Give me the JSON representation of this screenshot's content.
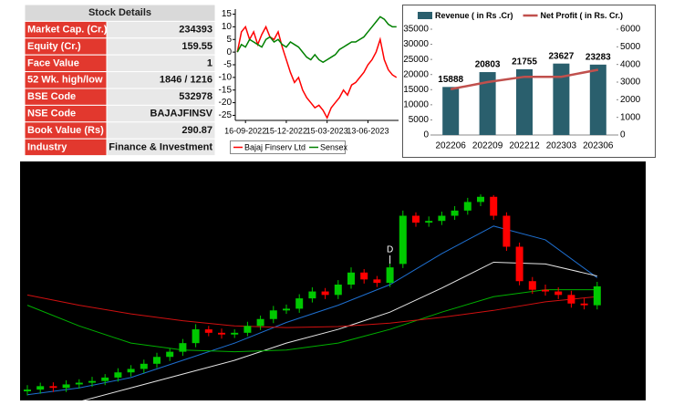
{
  "table": {
    "title": "Stock Details",
    "rows": [
      [
        "Market Cap. (Cr.)",
        "234393"
      ],
      [
        "Equity (Cr.)",
        "159.55"
      ],
      [
        "Face Value",
        "1"
      ],
      [
        "52 Wk. high/low",
        "1846 / 1216"
      ],
      [
        "BSE Code",
        "532978"
      ],
      [
        "NSE Code",
        "BAJAJFINSV"
      ],
      [
        "Book Value (Rs)",
        "290.87"
      ],
      [
        "Industry",
        "Finance & Investment"
      ]
    ]
  },
  "chart_data": [
    {
      "type": "line",
      "categories": [
        null,
        null,
        "16-09-2022",
        null,
        null,
        null,
        null,
        null,
        null,
        null,
        null,
        null,
        "15-12-2022",
        null,
        null,
        null,
        null,
        null,
        null,
        null,
        null,
        null,
        "15-03-2023",
        null,
        null,
        null,
        null,
        null,
        null,
        null,
        null,
        null,
        "13-06-2023",
        null,
        null,
        null,
        null,
        null,
        null,
        null
      ],
      "series": [
        {
          "name": "Bajaj Finserv Ltd",
          "color": "#ff0000",
          "values": [
            0,
            8,
            10,
            5,
            8,
            3,
            7,
            10,
            6,
            5,
            8,
            2,
            -3,
            -8,
            -12,
            -10,
            -15,
            -18,
            -20,
            -22,
            -21,
            -23,
            -26,
            -22,
            -20,
            -18,
            -15,
            -17,
            -13,
            -12,
            -10,
            -8,
            -5,
            -3,
            0,
            5,
            -3,
            -7,
            -9,
            -10
          ]
        },
        {
          "name": "Sensex",
          "color": "#008000",
          "values": [
            0,
            3,
            2,
            5,
            4,
            3,
            2,
            5,
            6,
            4,
            5,
            3,
            2,
            4,
            3,
            2,
            0,
            -2,
            -3,
            -1,
            -3,
            -4,
            -3,
            -2,
            -1,
            1,
            2,
            3,
            4,
            4,
            5,
            6,
            8,
            10,
            12,
            14,
            13,
            11,
            10,
            10
          ]
        }
      ],
      "ylim": [
        -27,
        17
      ],
      "yticks": [
        15,
        10,
        5,
        0,
        -5,
        -10,
        -15,
        -20,
        -25
      ],
      "legend": "bottom"
    },
    {
      "type": "bar",
      "categories": [
        "202206",
        "202209",
        "202212",
        "202303",
        "202306"
      ],
      "series": [
        {
          "name": "Revenue ( in Rs .Cr)",
          "color": "#2a5f6d",
          "values": [
            15888,
            20803,
            21755,
            23627,
            23283
          ],
          "show_labels": true
        },
        {
          "name": "Net Profit ( in Rs. Cr.)",
          "color": "#c0504d",
          "type": "line",
          "axis": "y2",
          "values": [
            2600,
            3000,
            3300,
            3300,
            3700
          ]
        }
      ],
      "ylim": [
        0,
        35000
      ],
      "yticks": [
        0,
        5000,
        10000,
        15000,
        20000,
        25000,
        30000,
        35000
      ],
      "y2lim": [
        0,
        6000
      ],
      "y2ticks": [
        0,
        1000,
        2000,
        3000,
        4000,
        5000,
        6000
      ],
      "legend": "top"
    },
    {
      "type": "candlestick",
      "background": "#000000",
      "up_color": "#00c800",
      "down_color": "#ff0000",
      "ylim": [
        1280,
        1900
      ],
      "open": [
        1280,
        1285,
        1295,
        1290,
        1300,
        1305,
        1310,
        1320,
        1335,
        1345,
        1360,
        1380,
        1395,
        1420,
        1460,
        1450,
        1445,
        1450,
        1470,
        1490,
        1515,
        1520,
        1550,
        1570,
        1560,
        1590,
        1625,
        1605,
        1595,
        1650,
        1790,
        1770,
        1775,
        1790,
        1805,
        1830,
        1845,
        1790,
        1700,
        1600,
        1575,
        1570,
        1560,
        1535,
        1530
      ],
      "high": [
        1298,
        1305,
        1306,
        1312,
        1315,
        1322,
        1330,
        1347,
        1356,
        1372,
        1392,
        1405,
        1432,
        1475,
        1470,
        1462,
        1460,
        1482,
        1500,
        1528,
        1532,
        1562,
        1582,
        1580,
        1603,
        1640,
        1635,
        1615,
        1652,
        1805,
        1800,
        1788,
        1802,
        1818,
        1842,
        1852,
        1850,
        1800,
        1712,
        1612,
        1590,
        1582,
        1572,
        1550,
        1598
      ],
      "low": [
        1268,
        1273,
        1278,
        1278,
        1288,
        1293,
        1298,
        1308,
        1323,
        1333,
        1348,
        1368,
        1383,
        1408,
        1440,
        1433,
        1435,
        1440,
        1458,
        1478,
        1505,
        1508,
        1538,
        1548,
        1548,
        1578,
        1593,
        1583,
        1583,
        1638,
        1758,
        1758,
        1763,
        1778,
        1793,
        1818,
        1778,
        1688,
        1588,
        1563,
        1558,
        1548,
        1523,
        1518,
        1518
      ],
      "close": [
        1285,
        1295,
        1290,
        1300,
        1305,
        1310,
        1320,
        1335,
        1345,
        1360,
        1380,
        1395,
        1420,
        1460,
        1450,
        1445,
        1450,
        1470,
        1490,
        1515,
        1520,
        1550,
        1570,
        1560,
        1590,
        1625,
        1605,
        1595,
        1640,
        1790,
        1770,
        1775,
        1790,
        1805,
        1830,
        1845,
        1790,
        1700,
        1600,
        1575,
        1570,
        1560,
        1535,
        1530,
        1585
      ],
      "moving_averages": [
        {
          "color": "#1e6fd0",
          "x": [
            0,
            4,
            8,
            12,
            16,
            20,
            24,
            28,
            32,
            36,
            40,
            44
          ],
          "values": [
            1270,
            1290,
            1320,
            1370,
            1420,
            1480,
            1530,
            1590,
            1680,
            1760,
            1720,
            1610
          ]
        },
        {
          "color": "#e6e6e6",
          "x": [
            0,
            4,
            8,
            12,
            16,
            20,
            24,
            28,
            32,
            36,
            40,
            44
          ],
          "values": [
            1230,
            1250,
            1290,
            1330,
            1370,
            1420,
            1460,
            1510,
            1580,
            1655,
            1650,
            1615
          ]
        },
        {
          "color": "#00b000",
          "x": [
            0,
            4,
            8,
            12,
            16,
            20,
            24,
            28,
            32,
            36,
            40,
            44
          ],
          "values": [
            1530,
            1470,
            1420,
            1400,
            1395,
            1400,
            1420,
            1460,
            1510,
            1555,
            1575,
            1575
          ]
        },
        {
          "color": "#d01010",
          "x": [
            0,
            4,
            8,
            12,
            16,
            20,
            24,
            28,
            32,
            36,
            40,
            44
          ],
          "values": [
            1560,
            1530,
            1505,
            1485,
            1470,
            1465,
            1468,
            1478,
            1495,
            1515,
            1540,
            1555
          ]
        }
      ],
      "annotations": [
        "D"
      ]
    }
  ]
}
